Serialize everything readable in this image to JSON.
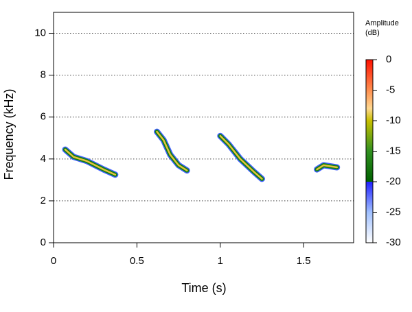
{
  "chart_data": {
    "type": "spectrogram",
    "xlabel": "Time (s)",
    "ylabel": "Frequency (kHz)",
    "xlim": [
      0,
      1.8
    ],
    "xticks": [
      0,
      0.5,
      1,
      1.5
    ],
    "ylim": [
      0,
      11
    ],
    "yticks": [
      0,
      2,
      4,
      6,
      8,
      10
    ],
    "grid": true,
    "calls": [
      {
        "x": [
          0.07,
          0.12,
          0.2,
          0.3,
          0.37
        ],
        "y": [
          4.45,
          4.1,
          3.9,
          3.5,
          3.25
        ]
      },
      {
        "x": [
          0.62,
          0.66,
          0.7,
          0.75,
          0.8
        ],
        "y": [
          5.3,
          4.9,
          4.2,
          3.7,
          3.45
        ]
      },
      {
        "x": [
          1.0,
          1.05,
          1.12,
          1.2,
          1.25
        ],
        "y": [
          5.1,
          4.7,
          4.0,
          3.4,
          3.05
        ]
      },
      {
        "x": [
          1.58,
          1.62,
          1.7
        ],
        "y": [
          3.5,
          3.7,
          3.6
        ]
      }
    ],
    "call_colors": [
      "#4060ff",
      "#108010",
      "#e8c040"
    ],
    "colorbar": {
      "title": [
        "Amplitude",
        "(dB)"
      ],
      "lim": [
        -30,
        0
      ],
      "ticks": [
        0,
        -5,
        -10,
        -15,
        -20,
        -25,
        -30
      ],
      "stops": [
        {
          "value": 0,
          "color": "#ff1000"
        },
        {
          "value": -5,
          "color": "#ff9050"
        },
        {
          "value": -8,
          "color": "#ffd890"
        },
        {
          "value": -10,
          "color": "#c8c000"
        },
        {
          "value": -15,
          "color": "#309020"
        },
        {
          "value": -20,
          "color": "#006000"
        },
        {
          "value": -20,
          "color": "#2020ff"
        },
        {
          "value": -25,
          "color": "#a0c0ff"
        },
        {
          "value": -30,
          "color": "#ffffff"
        }
      ]
    }
  }
}
